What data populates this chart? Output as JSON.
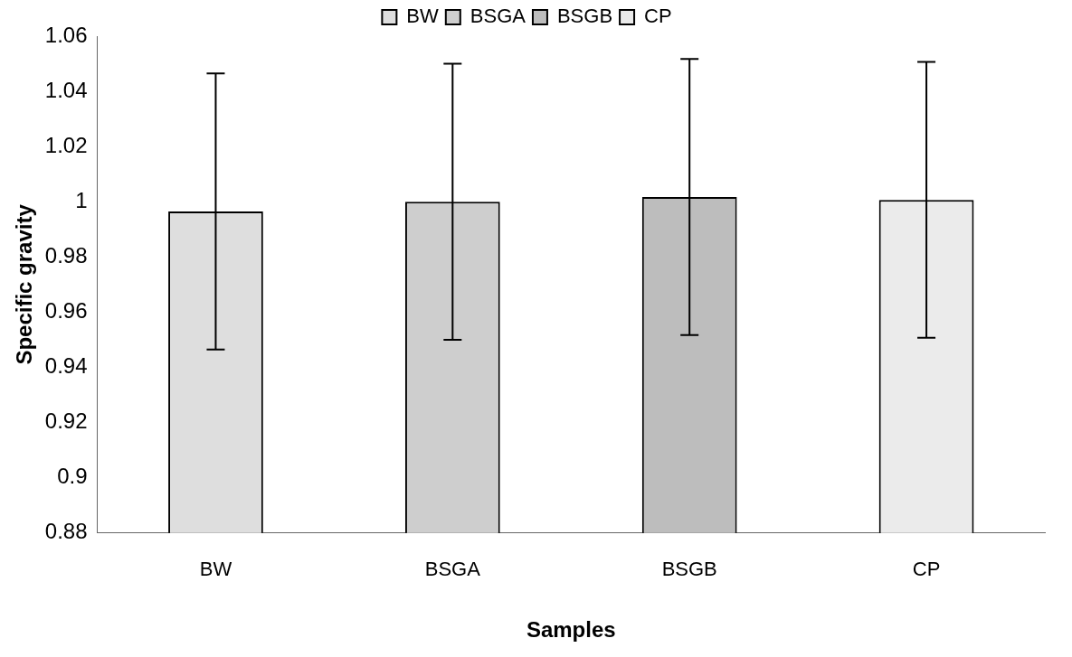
{
  "chart_data": {
    "type": "bar",
    "xlabel": "Samples",
    "ylabel": "Specific gravity",
    "categories": [
      "BW",
      "BSGA",
      "BSGB",
      "CP"
    ],
    "series": [
      {
        "name": "BW",
        "color": "#dedede",
        "values": [
          0.9965,
          null,
          null,
          null
        ],
        "errors": [
          0.05,
          null,
          null,
          null
        ]
      },
      {
        "name": "BSGA",
        "color": "#cecece",
        "values": [
          null,
          1.0,
          null,
          null
        ],
        "errors": [
          null,
          0.05,
          null,
          null
        ]
      },
      {
        "name": "BSGB",
        "color": "#bdbdbd",
        "values": [
          null,
          null,
          1.0017,
          null
        ],
        "errors": [
          null,
          null,
          0.05,
          null
        ]
      },
      {
        "name": "CP",
        "color": "#ebebeb",
        "values": [
          null,
          null,
          null,
          1.0007
        ],
        "errors": [
          null,
          null,
          null,
          0.05
        ]
      }
    ],
    "ylim": [
      0.88,
      1.06
    ],
    "yticks": [
      0.88,
      0.9,
      0.92,
      0.94,
      0.96,
      0.98,
      1,
      1.02,
      1.04,
      1.06
    ],
    "grid": false,
    "legend": "top"
  }
}
